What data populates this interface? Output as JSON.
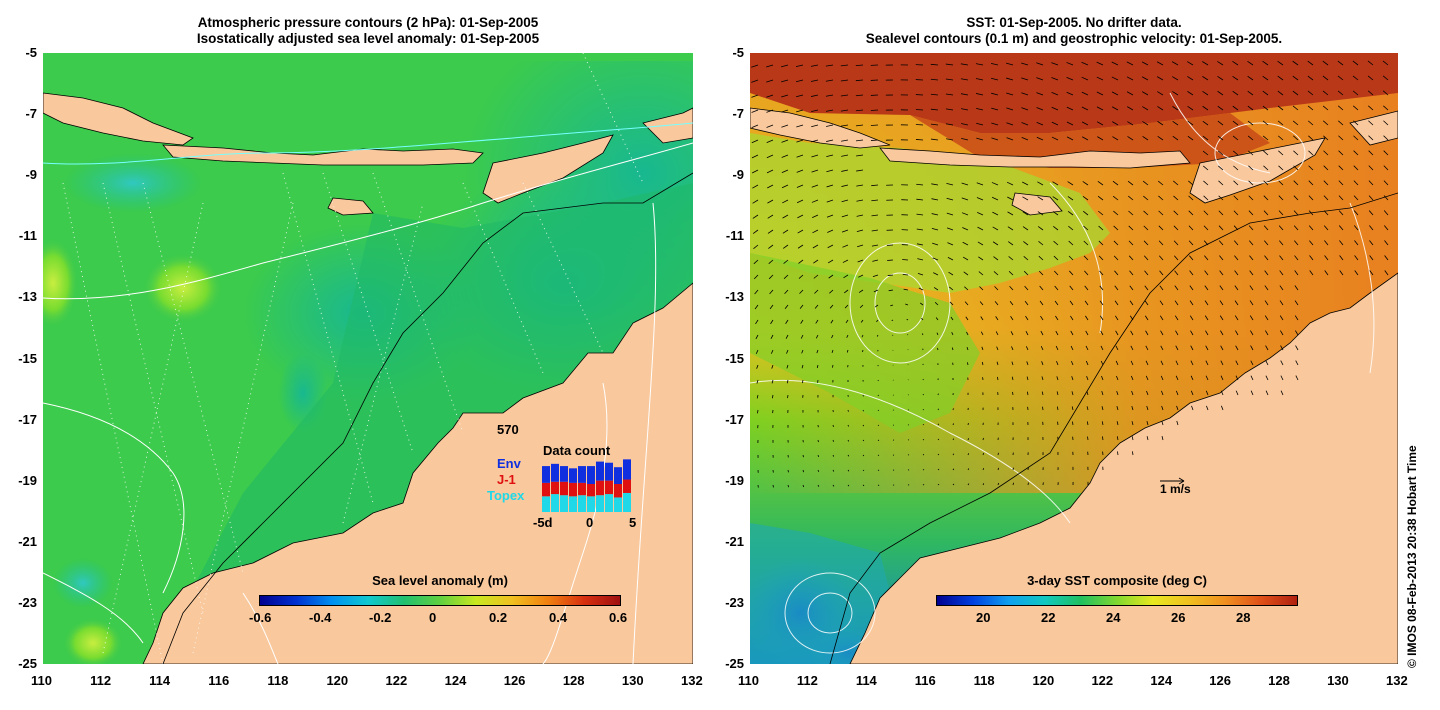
{
  "left_panel": {
    "title_line1": "Atmospheric pressure contours (2 hPa): 01-Sep-2005",
    "title_line2": "Isostatically adjusted sea level anomaly: 01-Sep-2005",
    "colorbar": {
      "title": "Sea level anomaly (m)",
      "ticks": [
        "-0.6",
        "-0.4",
        "-0.2",
        "0",
        "0.2",
        "0.4",
        "0.6"
      ]
    },
    "data_count": {
      "title": "Data count",
      "max_label": "570",
      "series": [
        {
          "name": "Env",
          "color": "#1030e0"
        },
        {
          "name": "J-1",
          "color": "#e01010"
        },
        {
          "name": "Topex",
          "color": "#20d8e8"
        }
      ],
      "xticks": [
        "-5d",
        "0",
        "5"
      ],
      "bars": [
        {
          "topex": 0.28,
          "j1": 0.24,
          "env": 0.3
        },
        {
          "topex": 0.32,
          "j1": 0.22,
          "env": 0.32
        },
        {
          "topex": 0.3,
          "j1": 0.24,
          "env": 0.28
        },
        {
          "topex": 0.28,
          "j1": 0.24,
          "env": 0.26
        },
        {
          "topex": 0.3,
          "j1": 0.22,
          "env": 0.3
        },
        {
          "topex": 0.28,
          "j1": 0.22,
          "env": 0.32
        },
        {
          "topex": 0.3,
          "j1": 0.26,
          "env": 0.34
        },
        {
          "topex": 0.32,
          "j1": 0.24,
          "env": 0.32
        },
        {
          "topex": 0.26,
          "j1": 0.24,
          "env": 0.3
        },
        {
          "topex": 0.34,
          "j1": 0.24,
          "env": 0.36
        }
      ]
    }
  },
  "right_panel": {
    "title_line1": "SST: 01-Sep-2005. No drifter data.",
    "title_line2": "Sealevel contours (0.1 m) and geostrophic velocity: 01-Sep-2005.",
    "velocity_scale_label": "1 m/s",
    "colorbar": {
      "title": "3-day SST composite (deg C)",
      "ticks": [
        "20",
        "22",
        "24",
        "26",
        "28"
      ]
    }
  },
  "axes": {
    "x_ticks": [
      "110",
      "112",
      "114",
      "116",
      "118",
      "120",
      "122",
      "124",
      "126",
      "128",
      "130",
      "132"
    ],
    "y_ticks": [
      "-5",
      "-7",
      "-9",
      "-11",
      "-13",
      "-15",
      "-17",
      "-19",
      "-21",
      "-23",
      "-25"
    ]
  },
  "copyright": "© IMOS 08-Feb-2013 20:38 Hobart Time",
  "colors": {
    "land": "#f9c89c",
    "ocean_green": "#1fbf6a",
    "sst_orange": "#f0a020"
  }
}
